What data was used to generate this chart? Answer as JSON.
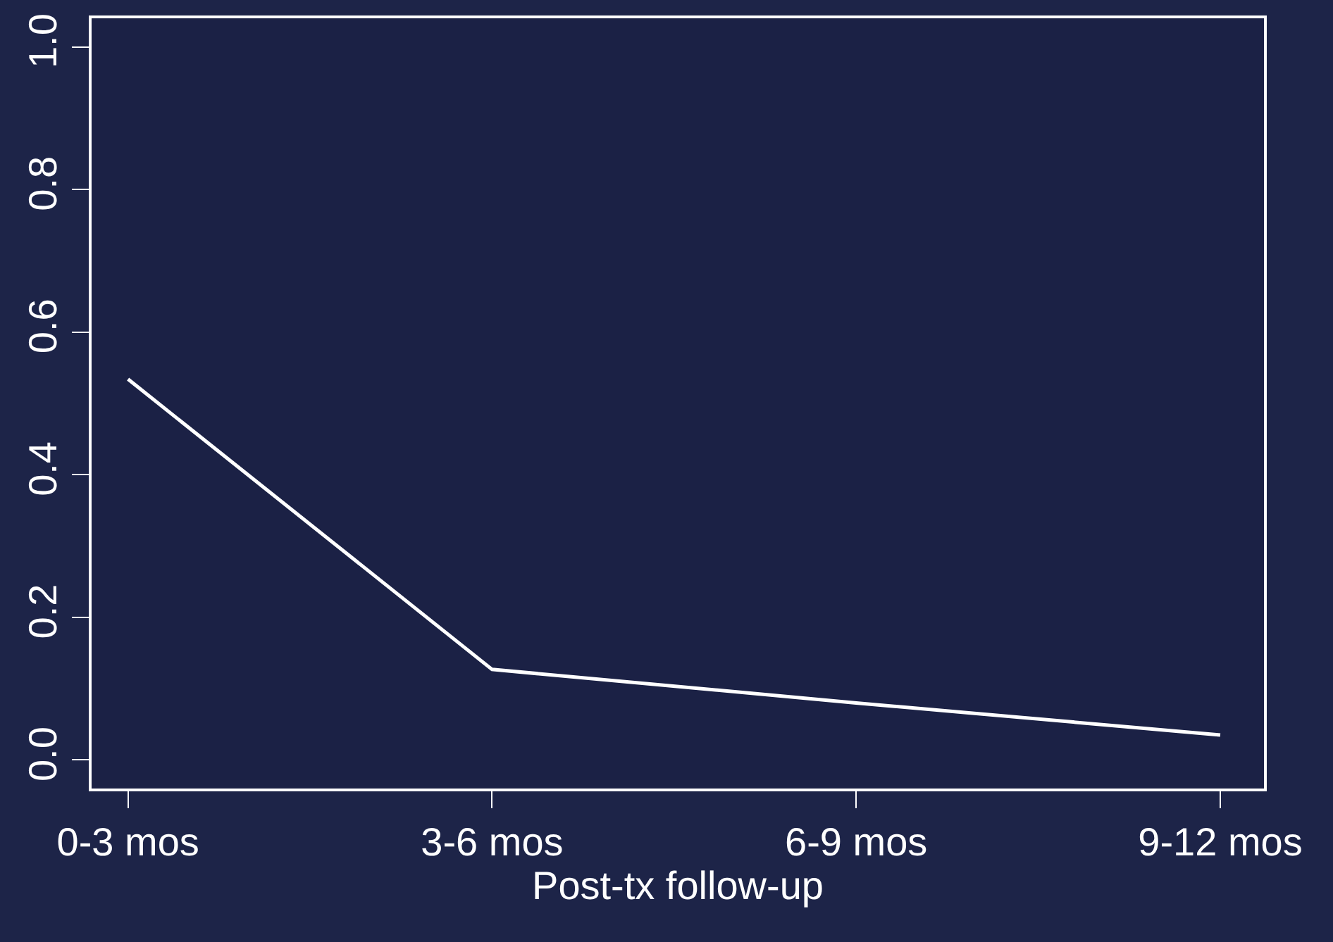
{
  "chart_data": {
    "type": "line",
    "xlabel": "Post-tx follow-up",
    "categories": [
      "0-3 mos",
      "3-6 mos",
      "6-9 mos",
      "9-12 mos"
    ],
    "series": [
      {
        "color": "#ffffff",
        "values": [
          0.534,
          0.127,
          0.08,
          0.035
        ]
      }
    ],
    "ylim": [
      -0.04,
      1.04
    ],
    "yticks": [
      {
        "value": 0,
        "label": "0.0"
      },
      {
        "value": 0.2,
        "label": "0.2"
      },
      {
        "value": 0.4,
        "label": "0.4"
      },
      {
        "value": 0.6,
        "label": "0.6"
      },
      {
        "value": 0.8,
        "label": "0.8"
      },
      {
        "value": 1,
        "label": "1.0"
      }
    ],
    "grid": false,
    "marker": "none",
    "line_style": "solid"
  }
}
